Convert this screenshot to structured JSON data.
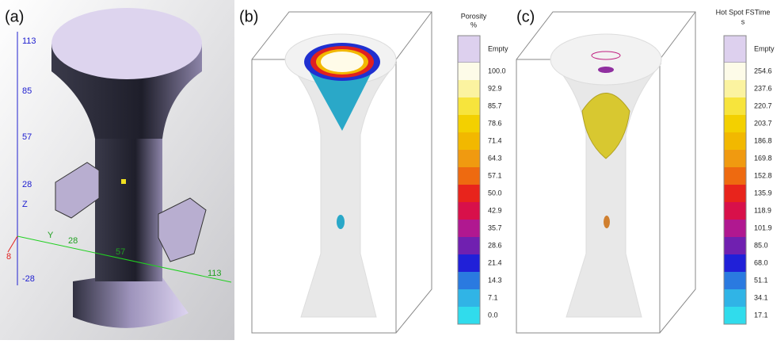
{
  "panels": [
    {
      "label": "(a)",
      "z_axis": {
        "name": "Z",
        "ticks": [
          "113",
          "85",
          "57",
          "28",
          "-28"
        ]
      },
      "y_axis": {
        "name": "Y",
        "ticks": [
          "28",
          "57",
          "113"
        ]
      },
      "x_axis": {
        "ticks": [
          "8"
        ]
      }
    },
    {
      "label": "(b)",
      "colorbar": {
        "title": "Porosity",
        "unit": "%",
        "empty": "Empty",
        "labels": [
          "100.0",
          "92.9",
          "85.7",
          "78.6",
          "71.4",
          "64.3",
          "57.1",
          "50.0",
          "42.9",
          "35.7",
          "28.6",
          "21.4",
          "14.3",
          "7.1",
          "0.0"
        ]
      }
    },
    {
      "label": "(c)",
      "colorbar": {
        "title": "Hot Spot FSTime",
        "unit": "s",
        "empty": "Empty",
        "labels": [
          "254.6",
          "237.6",
          "220.7",
          "203.7",
          "186.8",
          "169.8",
          "152.8",
          "135.9",
          "118.9",
          "101.9",
          "85.0",
          "68.0",
          "51.1",
          "34.1",
          "17.1"
        ]
      }
    }
  ],
  "colorbar_colors": [
    "#fdfbe8",
    "#fbf3a0",
    "#f7e43c",
    "#f3d000",
    "#f2b800",
    "#f09a10",
    "#ee6a10",
    "#e8241c",
    "#d8104a",
    "#b01890",
    "#7020b0",
    "#2020d8",
    "#2a7ae0",
    "#30b4e6",
    "#30dcec"
  ],
  "empty_color": "#ddd0ee"
}
